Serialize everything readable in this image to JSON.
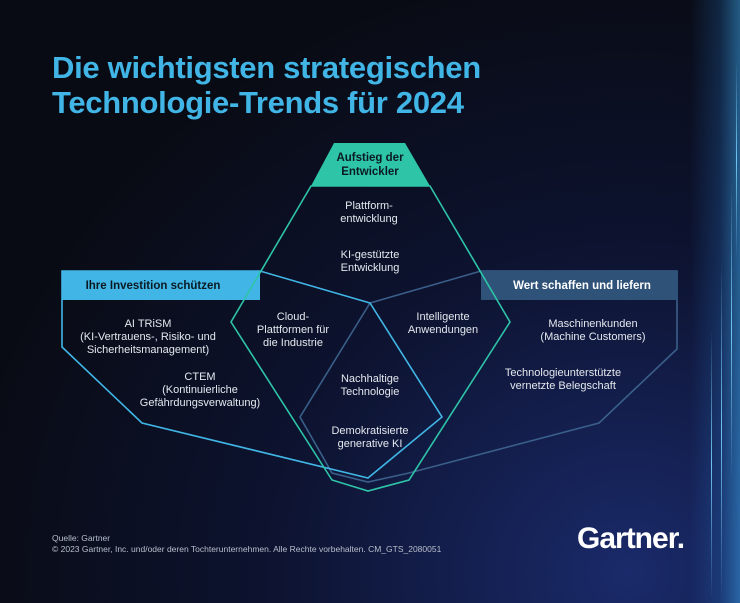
{
  "title": {
    "line1": "Die wichtigsten strategischen",
    "line2": "Technologie-Trends für 2024"
  },
  "groups": {
    "top": {
      "label_line1": "Aufstieg der",
      "label_line2": "Entwickler",
      "color": "#2ec4a8"
    },
    "left": {
      "label": "Ihre Investition schützen",
      "color": "#41b6e6"
    },
    "right": {
      "label": "Wert schaffen und liefern",
      "color": "#2f5278"
    }
  },
  "trends": {
    "plattform": [
      "Plattform-",
      "entwicklung"
    ],
    "ki_dev": [
      "KI-gestützte",
      "Entwicklung"
    ],
    "cloud": [
      "Cloud-",
      "Plattformen für",
      "die Industrie"
    ],
    "intelligent": [
      "Intelligente",
      "Anwendungen"
    ],
    "nachhaltig": [
      "Nachhaltige",
      "Technologie"
    ],
    "genai": [
      "Demokratisierte",
      "generative KI"
    ],
    "aitrism": [
      "AI TRiSM",
      "(KI-Vertrauens-, Risiko- und",
      "Sicherheitsmanagement)"
    ],
    "ctem": [
      "CTEM",
      "(Kontinuierliche",
      "Gefährdungsverwaltung)"
    ],
    "machine": [
      "Maschinenkunden",
      "(Machine Customers)"
    ],
    "workforce": [
      "Technologieunterstützte",
      "vernetzte Belegschaft"
    ]
  },
  "footer": {
    "source": "Quelle: Gartner",
    "copyright": "© 2023 Gartner, Inc. und/oder deren Tochterunternehmen. Alle Rechte vorbehalten. CM_GTS_2080051",
    "logo": "Gartner."
  }
}
